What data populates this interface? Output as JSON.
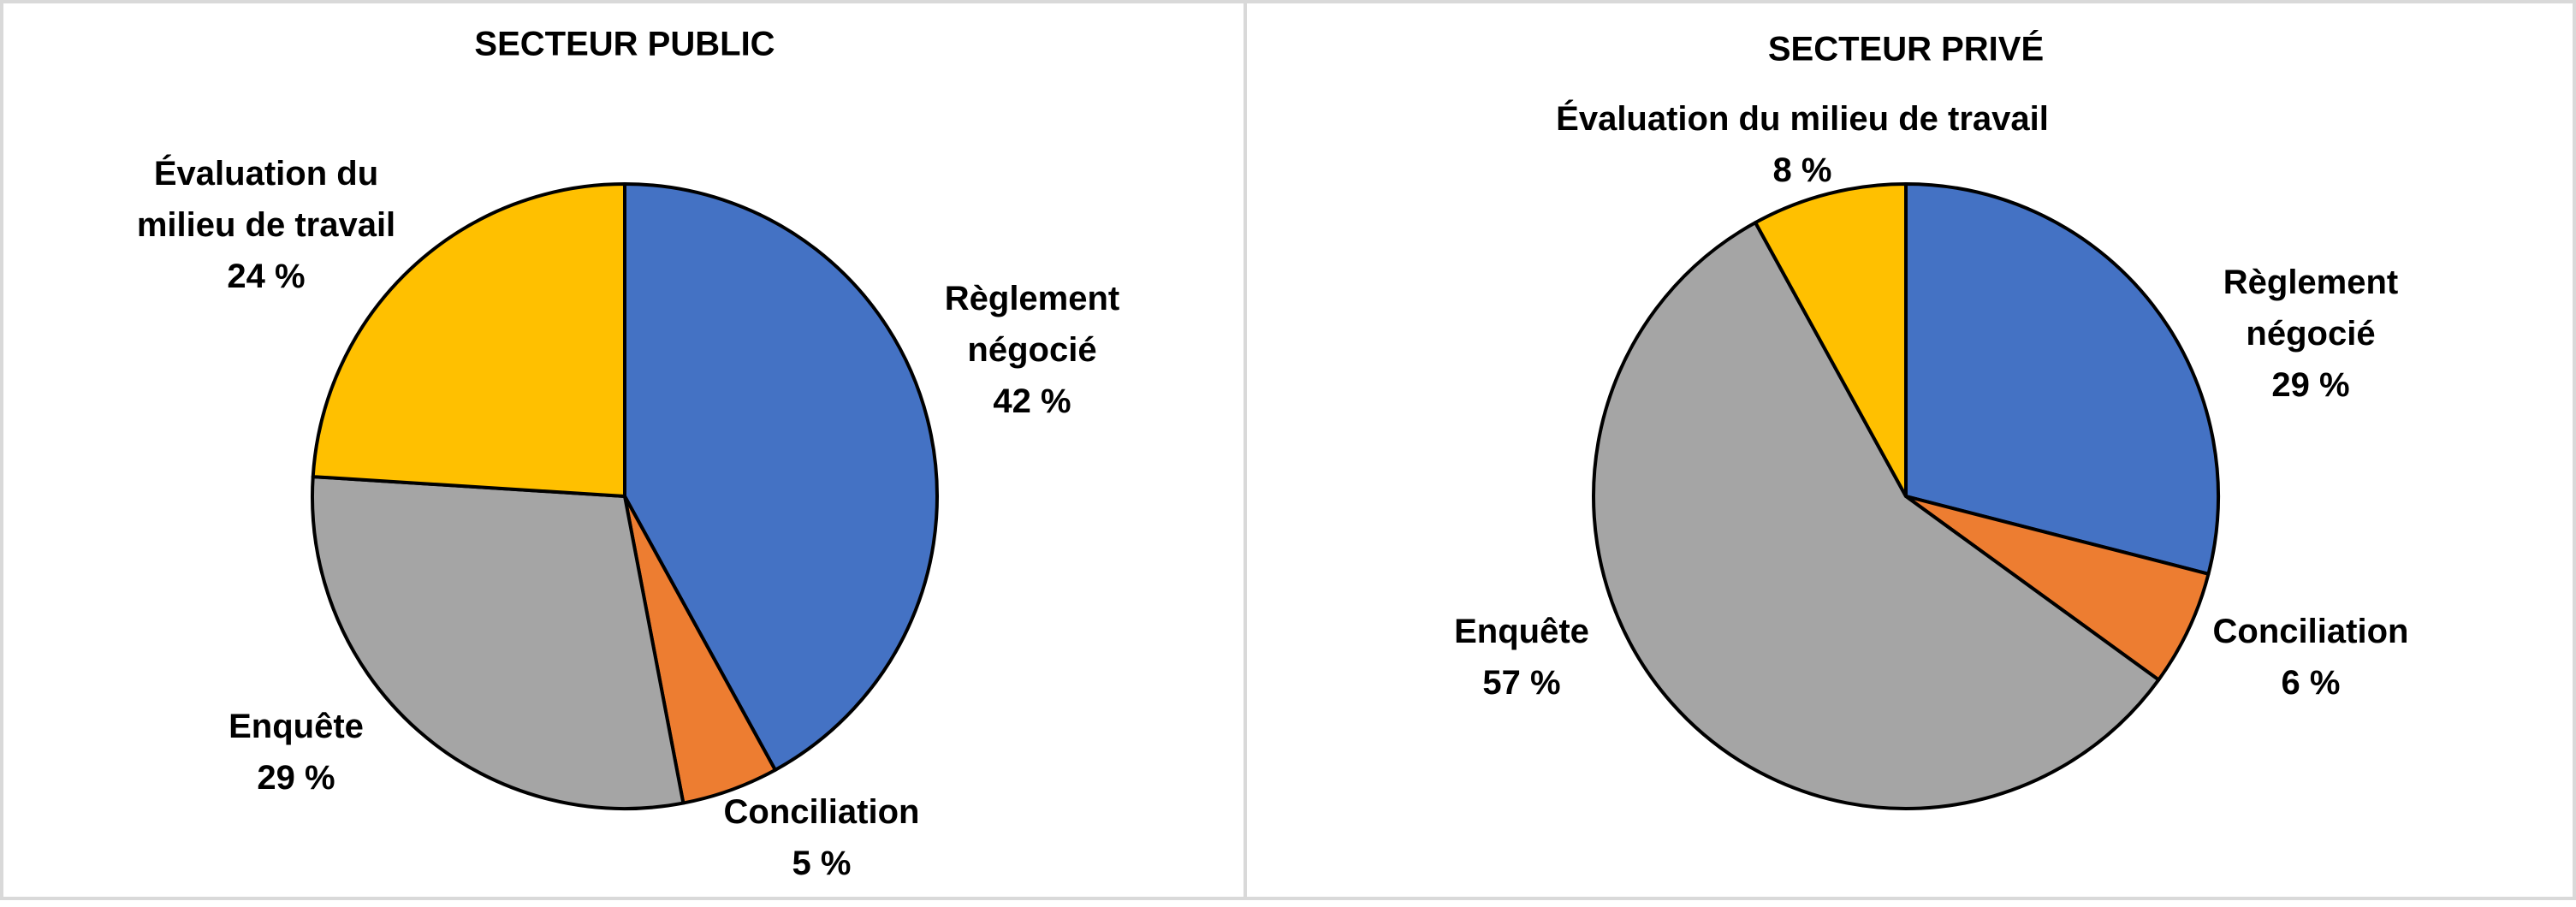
{
  "chart_data": [
    {
      "type": "pie",
      "title": "SECTEUR PUBLIC",
      "categories": [
        "Règlement négocié",
        "Conciliation",
        "Enquête",
        "Évaluation du milieu de travail"
      ],
      "values": [
        42,
        5,
        29,
        24
      ],
      "value_labels": [
        "42 %",
        "5 %",
        "29 %",
        "24 %"
      ],
      "colors": [
        "#4472c4",
        "#ed7d31",
        "#a5a5a5",
        "#ffc000"
      ]
    },
    {
      "type": "pie",
      "title": "SECTEUR PRIVÉ",
      "categories": [
        "Règlement négocié",
        "Conciliation",
        "Enquête",
        "Évaluation du milieu de travail"
      ],
      "values": [
        29,
        6,
        57,
        8
      ],
      "value_labels": [
        "29 %",
        "6 %",
        "57 %",
        "8 %"
      ],
      "colors": [
        "#4472c4",
        "#ed7d31",
        "#a5a5a5",
        "#ffc000"
      ]
    }
  ]
}
